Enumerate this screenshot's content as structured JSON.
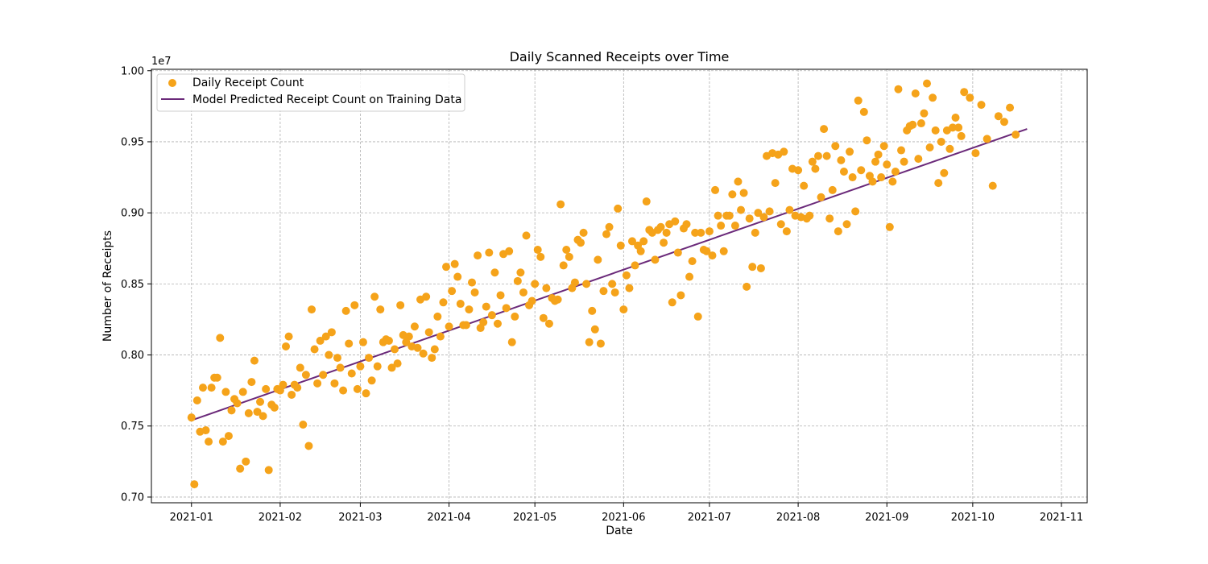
{
  "chart_data": {
    "type": "scatter",
    "title": "Daily Scanned Receipts over Time",
    "xlabel": "Date",
    "ylabel": "Number of Receipts",
    "y_offset_label": "1e7",
    "grid": true,
    "grid_style": "dashed",
    "legend_position": "top-left",
    "xlim": [
      "2020-12-18",
      "2021-11-10"
    ],
    "ylim": [
      6.96,
      10.01
    ],
    "x_ticks": [
      "2021-01-01",
      "2021-02-01",
      "2021-03-01",
      "2021-04-01",
      "2021-05-01",
      "2021-06-01",
      "2021-07-01",
      "2021-08-01",
      "2021-09-01",
      "2021-10-01",
      "2021-11-01"
    ],
    "x_tick_labels": [
      "2021-01",
      "2021-02",
      "2021-03",
      "2021-04",
      "2021-05",
      "2021-06",
      "2021-07",
      "2021-08",
      "2021-09",
      "2021-10",
      "2021-11"
    ],
    "y_ticks": [
      0.7,
      0.75,
      0.8,
      0.85,
      0.9,
      0.95,
      1.0
    ],
    "y_tick_labels": [
      "0.70",
      "0.75",
      "0.80",
      "0.85",
      "0.90",
      "0.95",
      "1.00"
    ],
    "y_unit_scale": 10,
    "series": [
      {
        "name": "Daily Receipt Count",
        "type": "scatter",
        "color": "#f5a31a",
        "x_start": "2021-01-01",
        "x_step_days": 2,
        "y_unit": "millions",
        "values": [
          7.56,
          7.68,
          7.77,
          7.39,
          7.84,
          8.12,
          7.74,
          7.61,
          7.66,
          7.74,
          7.59,
          7.96,
          7.67,
          7.76,
          7.65,
          7.76,
          7.79,
          8.13,
          7.79,
          7.91,
          7.86,
          8.32,
          7.8,
          7.86,
          8.0,
          7.8,
          7.91,
          8.31,
          7.87,
          7.76,
          8.09,
          7.98,
          8.41,
          8.32,
          8.11,
          7.91,
          7.94,
          8.14,
          8.13,
          8.2,
          8.39,
          8.41,
          7.98,
          8.27,
          8.37,
          8.2,
          8.64,
          8.36,
          8.21,
          8.51,
          8.7,
          8.23,
          8.72,
          8.58,
          8.42,
          8.33,
          8.09,
          8.52,
          8.44,
          8.35,
          8.5,
          8.69,
          8.47,
          8.4,
          8.39,
          8.63,
          8.69,
          8.51,
          8.79,
          8.5,
          8.31,
          8.67,
          8.45,
          8.9,
          8.44,
          8.77,
          8.56,
          8.8,
          8.77,
          8.8,
          8.88,
          8.67,
          8.9,
          8.86,
          8.37,
          8.72,
          8.89,
          8.55,
          8.86,
          8.86,
          8.73,
          8.7,
          8.98,
          8.73,
          8.98,
          8.91,
          9.02,
          8.48,
          8.62,
          9.0,
          8.97,
          9.01,
          9.21,
          8.92,
          8.87,
          9.31,
          9.3,
          9.19,
          8.98,
          9.31,
          9.11,
          9.4,
          9.16,
          8.87,
          9.29,
          9.43,
          9.01,
          9.3,
          9.51,
          9.22,
          9.41,
          9.47,
          8.9,
          9.29,
          9.44,
          9.58,
          9.62,
          9.38,
          9.7,
          9.46,
          9.58,
          9.5,
          9.58,
          9.6,
          9.6,
          9.85,
          9.81,
          9.42,
          9.76,
          9.52,
          9.19,
          9.68,
          9.64,
          9.74,
          9.55
        ]
      },
      {
        "name": "Model Predicted Receipt Count on Training Data",
        "type": "line",
        "color": "#6b2a7a",
        "x": [
          "2021-01-01",
          "2021-10-20"
        ],
        "y_unit": "millions",
        "values": [
          7.54,
          9.59
        ]
      }
    ],
    "extra_points_y": [
      7.09,
      7.46,
      7.47,
      7.77,
      7.84,
      7.39,
      7.43,
      7.69,
      7.2,
      7.25,
      7.81,
      7.6,
      7.57,
      7.19,
      7.63,
      7.75,
      8.06,
      7.72,
      7.77,
      7.51,
      7.36,
      8.04,
      8.1,
      8.13,
      8.16,
      7.98,
      7.75,
      8.08,
      8.35,
      7.92,
      7.73,
      7.82,
      7.92,
      8.09,
      8.1,
      8.04,
      8.35,
      8.09,
      8.06,
      8.05,
      8.01,
      8.16,
      8.04,
      8.13,
      8.62,
      8.45,
      8.55,
      8.21,
      8.32,
      8.44,
      8.19,
      8.34,
      8.28,
      8.22,
      8.71,
      8.73,
      8.27,
      8.58,
      8.84,
      8.38,
      8.74,
      8.26,
      8.22,
      8.38,
      9.06,
      8.74,
      8.47,
      8.81,
      8.86,
      8.09,
      8.18,
      8.08,
      8.85,
      8.5,
      9.03,
      8.32,
      8.47,
      8.63,
      8.73,
      9.08,
      8.86,
      8.88,
      8.79,
      8.92,
      8.94,
      8.42,
      8.92,
      8.66,
      8.27,
      8.74,
      8.87,
      9.16,
      8.91,
      8.98,
      9.13,
      9.22,
      9.14,
      8.96,
      8.86,
      8.61,
      9.4,
      9.42,
      9.41,
      9.43,
      9.02,
      8.98,
      8.97,
      8.96,
      9.36,
      9.4,
      9.59,
      8.96,
      9.47,
      9.37,
      8.92,
      9.25,
      9.79,
      9.71,
      9.26,
      9.36,
      9.25,
      9.34,
      9.22,
      9.87,
      9.36,
      9.61,
      9.84,
      9.63,
      9.91,
      9.81,
      9.21,
      9.28,
      9.45,
      9.67,
      9.54
    ]
  }
}
